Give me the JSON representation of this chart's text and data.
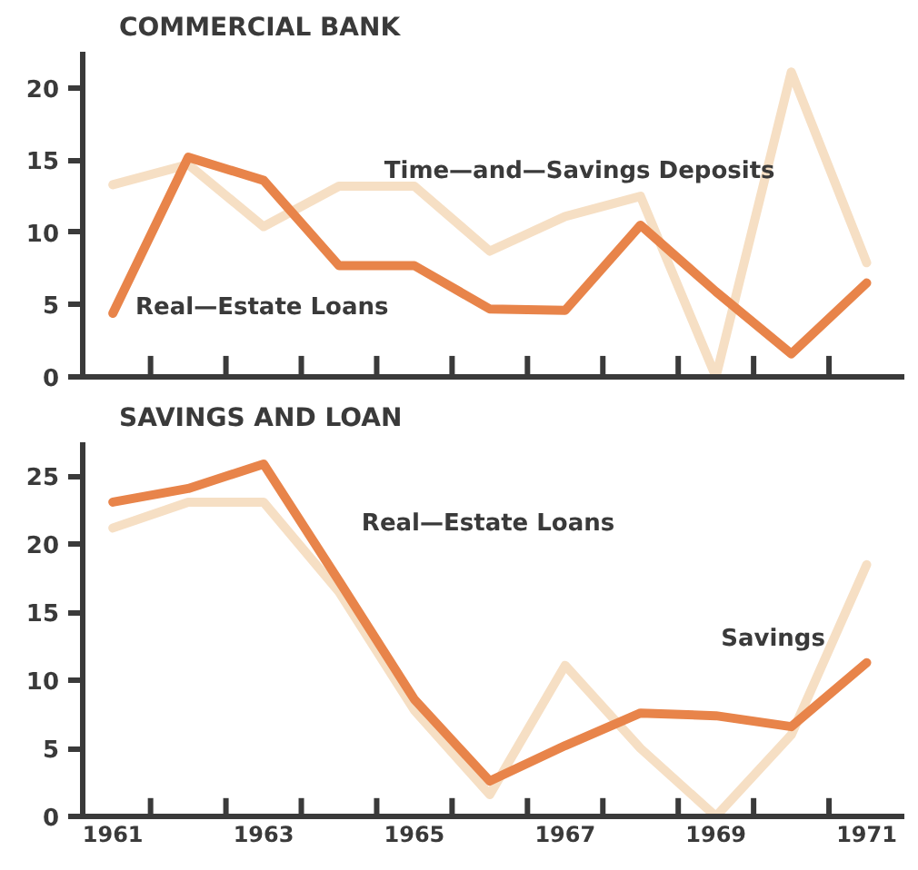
{
  "chart_data": [
    {
      "type": "line",
      "title": "COMMERCIAL BANK",
      "x": [
        1961,
        1962,
        1963,
        1964,
        1965,
        1966,
        1967,
        1968,
        1969,
        1970,
        1971
      ],
      "xlim": [
        1960.6,
        1971.5
      ],
      "xticks": [
        {
          "value": 1961.5,
          "label": null
        },
        {
          "value": 1962.5,
          "label": null
        },
        {
          "value": 1963.5,
          "label": null
        },
        {
          "value": 1964.5,
          "label": null
        },
        {
          "value": 1965.5,
          "label": null
        },
        {
          "value": 1966.5,
          "label": null
        },
        {
          "value": 1967.5,
          "label": null
        },
        {
          "value": 1968.5,
          "label": null
        },
        {
          "value": 1969.5,
          "label": null
        },
        {
          "value": 1970.5,
          "label": null
        }
      ],
      "ylim": [
        0,
        22.5
      ],
      "yticks": [
        0,
        5,
        10,
        15,
        20
      ],
      "tick_labels": "y",
      "series": [
        {
          "name": "Time—and—Savings Deposits",
          "color": "#f6dfc4",
          "values": [
            13.3,
            14.7,
            10.4,
            13.2,
            13.2,
            8.7,
            11.1,
            12.5,
            0,
            21.1,
            7.9
          ]
        },
        {
          "name": "Real—Estate Loans",
          "color": "#e8844a",
          "values": [
            4.4,
            15.2,
            13.6,
            7.7,
            7.7,
            4.7,
            4.6,
            10.5,
            5.9,
            1.6,
            6.5
          ]
        }
      ]
    },
    {
      "type": "line",
      "title": "SAVINGS AND LOAN",
      "x": [
        1961,
        1962,
        1963,
        1964,
        1965,
        1966,
        1967,
        1968,
        1969,
        1970,
        1971
      ],
      "xlim": [
        1960.6,
        1971.5
      ],
      "xticks": [
        1961,
        {
          "value": 1961.5,
          "label": null
        },
        {
          "value": 1962.5,
          "label": null
        },
        1963,
        {
          "value": 1963.5,
          "label": null
        },
        {
          "value": 1964.5,
          "label": null
        },
        1965,
        {
          "value": 1965.5,
          "label": null
        },
        {
          "value": 1966.5,
          "label": null
        },
        1967,
        {
          "value": 1967.5,
          "label": null
        },
        {
          "value": 1968.5,
          "label": null
        },
        1969,
        {
          "value": 1969.5,
          "label": null
        },
        {
          "value": 1970.5,
          "label": null
        },
        1971
      ],
      "ylim": [
        0,
        27.5
      ],
      "yticks": [
        0,
        5,
        10,
        15,
        20,
        25
      ],
      "series": [
        {
          "name": "Savings",
          "color": "#f6dfc4",
          "values": [
            21.2,
            23.1,
            23.1,
            16.5,
            7.8,
            1.6,
            11.1,
            5.0,
            0,
            6.0,
            18.5
          ]
        },
        {
          "name": "Real—Estate Loans",
          "color": "#e8844a",
          "values": [
            23.1,
            24.1,
            25.9,
            17.3,
            8.6,
            2.6,
            5.2,
            7.6,
            7.4,
            6.6,
            11.3
          ]
        }
      ]
    }
  ]
}
